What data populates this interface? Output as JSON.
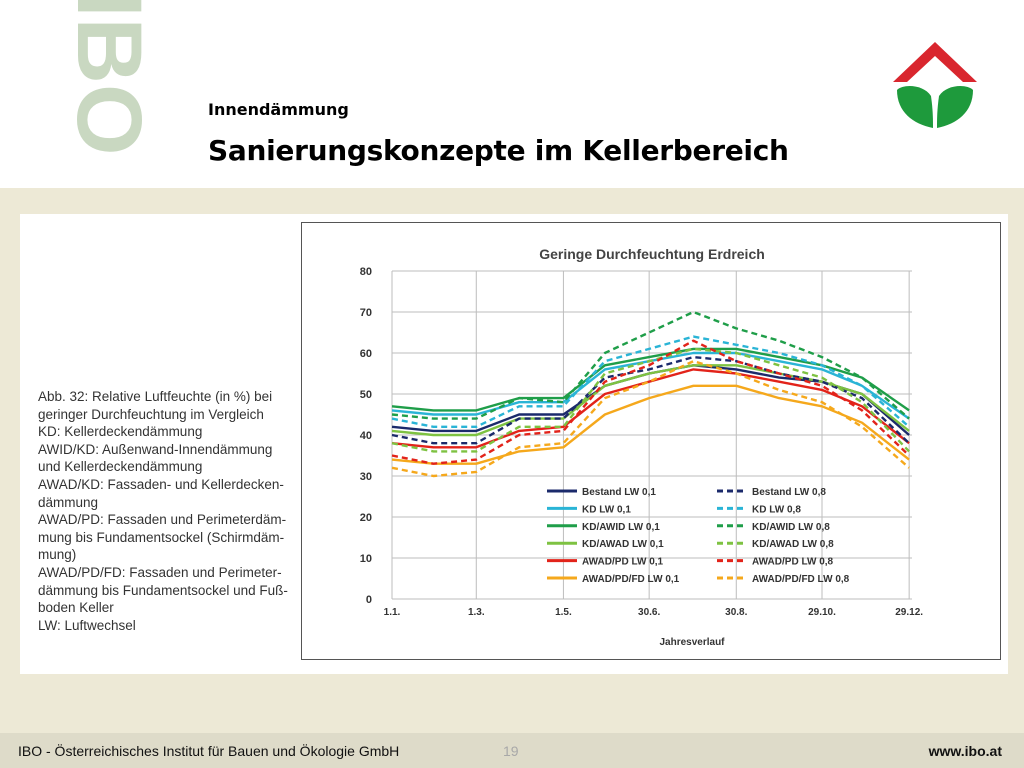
{
  "header": {
    "watermark": "IBO",
    "subtitle": "Innendämmung",
    "title": "Sanierungskonzepte im Kellerbereich"
  },
  "colors": {
    "watermark": "#c9d8c1",
    "logo_red": "#d9262e",
    "logo_green": "#1e9a3c",
    "background": "#ede9d6",
    "footer": "#dedbc9"
  },
  "caption": {
    "lines": [
      "Abb. 32: Relative Luftfeuchte (in %) bei",
      "geringer Durchfeuchtung im Vergleich",
      "KD: Kellerdeckendämmung",
      "AWID/KD: Außenwand-Innendämmung",
      "und Kellerdeckendämmung",
      "AWAD/KD: Fassaden- und Kellerdecken-",
      "dämmung",
      "AWAD/PD: Fassaden und Perimeterdäm-",
      "mung bis Fundamentsockel (Schirmdäm-",
      "mung)",
      "AWAD/PD/FD: Fassaden und Perimeter-",
      "dämmung bis Fundamentsockel und Fuß-",
      "boden Keller",
      "LW: Luftwechsel"
    ]
  },
  "footer": {
    "institute": "IBO - Österreichisches Institut für Bauen und Ökologie GmbH",
    "page": "19",
    "site": "www.ibo.at"
  },
  "chart_data": {
    "type": "line",
    "title": "Geringe Durchfeuchtung Erdreich",
    "xlabel": "Jahresverlauf",
    "ylabel": "",
    "ylim": [
      0,
      80
    ],
    "yticks": [
      0,
      10,
      20,
      30,
      40,
      50,
      60,
      70,
      80
    ],
    "xlim": [
      1,
      365
    ],
    "xticks": [
      {
        "label": "1.1.",
        "day": 1
      },
      {
        "label": "1.3.",
        "day": 60
      },
      {
        "label": "1.5.",
        "day": 121
      },
      {
        "label": "30.6.",
        "day": 181
      },
      {
        "label": "30.8.",
        "day": 242
      },
      {
        "label": "29.10.",
        "day": 302
      },
      {
        "label": "29.12.",
        "day": 363
      }
    ],
    "grid": true,
    "legend_position": "bottom-right",
    "x": [
      1,
      30,
      60,
      90,
      121,
      150,
      181,
      212,
      242,
      272,
      302,
      330,
      363
    ],
    "series": [
      {
        "name": "Bestand LW 0,1",
        "color": "#1b2a6b",
        "dash": false,
        "values": [
          42,
          41,
          41,
          45,
          45,
          52,
          55,
          57,
          56,
          54,
          53,
          50,
          40
        ]
      },
      {
        "name": "KD LW 0,1",
        "color": "#2ab4d6",
        "dash": false,
        "values": [
          46,
          45,
          45,
          48,
          48,
          56,
          58,
          60,
          60,
          58,
          56,
          52,
          44
        ]
      },
      {
        "name": "KD/AWID LW 0,1",
        "color": "#1f9e49",
        "dash": false,
        "values": [
          47,
          46,
          46,
          49,
          49,
          57,
          59,
          61,
          61,
          59,
          57,
          54,
          46
        ]
      },
      {
        "name": "KD/AWAD LW 0,1",
        "color": "#7ec242",
        "dash": false,
        "values": [
          41,
          40,
          40,
          44,
          44,
          52,
          55,
          57,
          57,
          55,
          53,
          50,
          41
        ]
      },
      {
        "name": "AWAD/PD LW 0,1",
        "color": "#e2231a",
        "dash": false,
        "values": [
          38,
          37,
          37,
          41,
          42,
          50,
          53,
          56,
          55,
          53,
          51,
          47,
          38
        ]
      },
      {
        "name": "AWAD/PD/FD LW 0,1",
        "color": "#f5a81c",
        "dash": false,
        "values": [
          34,
          33,
          33,
          36,
          37,
          45,
          49,
          52,
          52,
          49,
          47,
          43,
          34
        ]
      },
      {
        "name": "Bestand LW 0,8",
        "color": "#1b2a6b",
        "dash": true,
        "values": [
          40,
          38,
          38,
          44,
          44,
          54,
          56,
          59,
          58,
          55,
          53,
          49,
          38
        ]
      },
      {
        "name": "KD LW 0,8",
        "color": "#2ab4d6",
        "dash": true,
        "values": [
          44,
          42,
          42,
          47,
          47,
          58,
          61,
          64,
          62,
          60,
          57,
          52,
          42
        ]
      },
      {
        "name": "KD/AWID LW 0,8",
        "color": "#1f9e49",
        "dash": true,
        "values": [
          45,
          44,
          44,
          49,
          48,
          60,
          65,
          70,
          66,
          63,
          59,
          54,
          44
        ]
      },
      {
        "name": "KD/AWAD LW 0,8",
        "color": "#7ec242",
        "dash": true,
        "values": [
          38,
          36,
          36,
          42,
          42,
          55,
          58,
          61,
          60,
          57,
          54,
          48,
          36
        ]
      },
      {
        "name": "AWAD/PD LW 0,8",
        "color": "#e2231a",
        "dash": true,
        "values": [
          35,
          33,
          34,
          40,
          41,
          53,
          57,
          63,
          58,
          55,
          52,
          46,
          35
        ]
      },
      {
        "name": "AWAD/PD/FD LW 0,8",
        "color": "#f5a81c",
        "dash": true,
        "values": [
          32,
          30,
          31,
          37,
          38,
          49,
          53,
          58,
          55,
          51,
          48,
          42,
          32
        ]
      }
    ]
  }
}
